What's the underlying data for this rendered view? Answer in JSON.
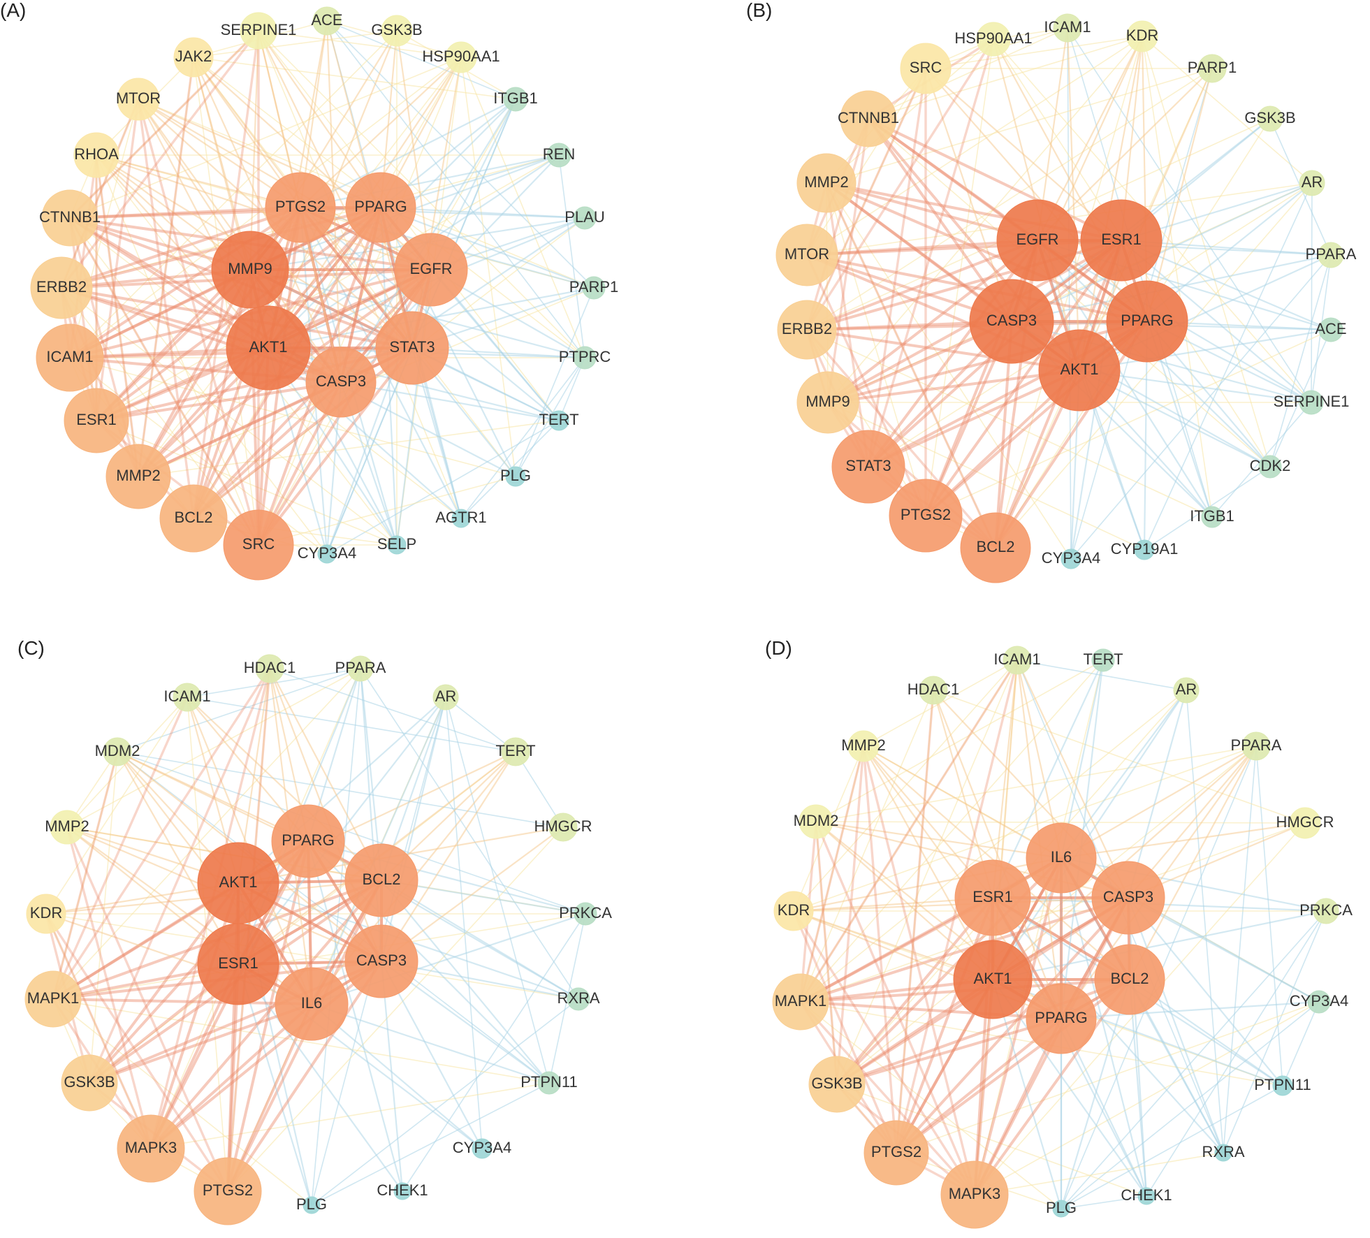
{
  "figure": {
    "panels": [
      {
        "id": "A",
        "label": "(A)",
        "hubs": [
          "AKT1",
          "MMP9",
          "PTGS2",
          "PPARG",
          "EGFR",
          "STAT3",
          "CASP3"
        ],
        "ring": [
          "ACE",
          "GSK3B",
          "HSP90AA1",
          "ITGB1",
          "REN",
          "PLAU",
          "PARP1",
          "PTPRC",
          "TERT",
          "PLG",
          "AGTR1",
          "SELP",
          "CYP3A4",
          "SRC",
          "BCL2",
          "MMP2",
          "ESR1",
          "ICAM1",
          "ERBB2",
          "CTNNB1",
          "RHOA",
          "MTOR",
          "JAK2",
          "SERPINE1"
        ]
      },
      {
        "id": "B",
        "label": "(B)",
        "hubs": [
          "EGFR",
          "ESR1",
          "CASP3",
          "PPARG",
          "AKT1"
        ],
        "ring": [
          "ICAM1",
          "KDR",
          "PARP1",
          "GSK3B",
          "AR",
          "PPARA",
          "ACE",
          "SERPINE1",
          "CDK2",
          "ITGB1",
          "CYP19A1",
          "CYP3A4",
          "BCL2",
          "PTGS2",
          "STAT3",
          "MMP9",
          "ERBB2",
          "MTOR",
          "MMP2",
          "CTNNB1",
          "SRC",
          "HSP90AA1"
        ]
      },
      {
        "id": "C",
        "label": "(C)",
        "hubs": [
          "PPARG",
          "AKT1",
          "BCL2",
          "ESR1",
          "CASP3",
          "IL6"
        ],
        "ring": [
          "PPARA",
          "AR",
          "TERT",
          "HMGCR",
          "PRKCA",
          "RXRA",
          "PTPN11",
          "CYP3A4",
          "CHEK1",
          "PLG",
          "PTGS2",
          "MAPK3",
          "GSK3B",
          "MAPK1",
          "KDR",
          "MMP2",
          "MDM2",
          "ICAM1",
          "HDAC1"
        ]
      },
      {
        "id": "D",
        "label": "(D)",
        "hubs": [
          "IL6",
          "ESR1",
          "CASP3",
          "AKT1",
          "BCL2",
          "PPARG"
        ],
        "ring": [
          "TERT",
          "AR",
          "PPARA",
          "HMGCR",
          "PRKCA",
          "CYP3A4",
          "PTPN11",
          "RXRA",
          "CHEK1",
          "PLG",
          "MAPK3",
          "PTGS2",
          "GSK3B",
          "MAPK1",
          "KDR",
          "MDM2",
          "MMP2",
          "HDAC1",
          "ICAM1"
        ]
      }
    ],
    "colors": {
      "hub": "#ee7a4c",
      "high": "#f59b6c",
      "mid_high": "#f7b47e",
      "mid": "#f9cf93",
      "mid_low": "#fbe6a6",
      "low": "#f2f0b0",
      "lower": "#dde9b0",
      "lowest": "#b7ddc4",
      "min": "#9dd6d6",
      "edge_strong": "#ec8a6a",
      "edge_mid": "#f6c78c",
      "edge_weak": "#f8e6a5",
      "edge_faint": "#a9d4e6",
      "label_text": "#333333"
    }
  }
}
